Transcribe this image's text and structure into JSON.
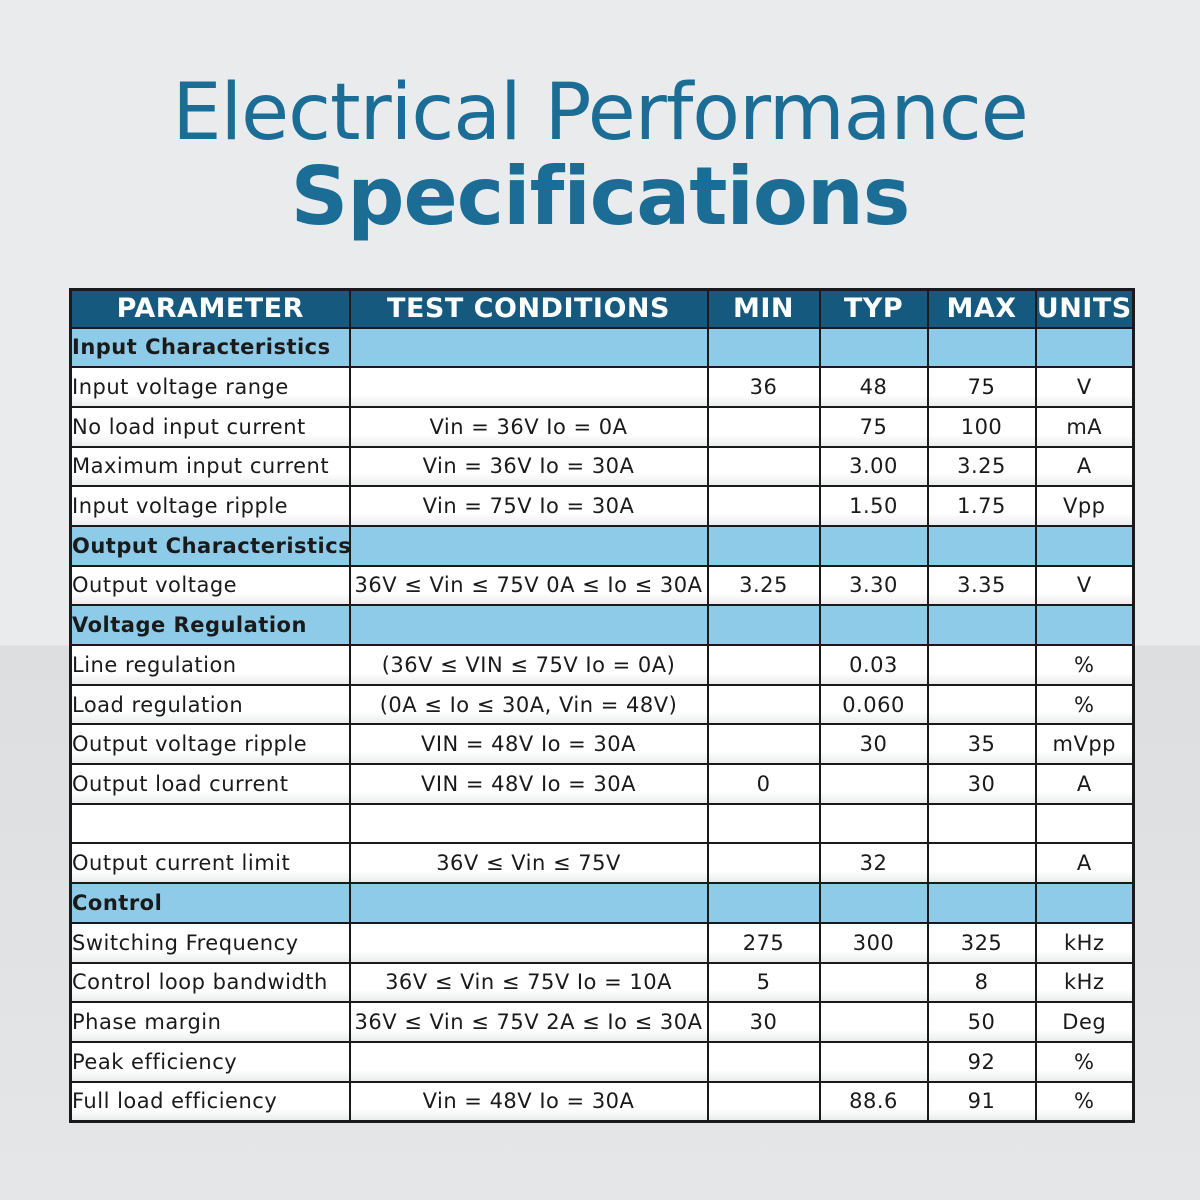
{
  "title": {
    "line1": "Electrical Performance",
    "line2": "Specifications"
  },
  "headers": [
    "PARAMETER",
    "TEST CONDITIONS",
    "MIN",
    "TYP",
    "MAX",
    "UNITS"
  ],
  "rows": [
    {
      "type": "section",
      "parameter": "Input Characteristics",
      "conditions": "",
      "min": "",
      "typ": "",
      "max": "",
      "units": ""
    },
    {
      "type": "data",
      "parameter": "Input voltage range",
      "conditions": "",
      "min": "36",
      "typ": "48",
      "max": "75",
      "units": "V"
    },
    {
      "type": "data",
      "parameter": "No load input current",
      "conditions": "Vin = 36V Io = 0A",
      "min": "",
      "typ": "75",
      "max": "100",
      "units": "mA"
    },
    {
      "type": "data",
      "parameter": "Maximum input current",
      "conditions": "Vin = 36V Io = 30A",
      "min": "",
      "typ": "3.00",
      "max": "3.25",
      "units": "A"
    },
    {
      "type": "data",
      "parameter": "Input voltage ripple",
      "conditions": "Vin = 75V Io = 30A",
      "min": "",
      "typ": "1.50",
      "max": "1.75",
      "units": "Vpp"
    },
    {
      "type": "section",
      "parameter": "Output Characteristics",
      "conditions": "",
      "min": "",
      "typ": "",
      "max": "",
      "units": ""
    },
    {
      "type": "data",
      "parameter": "Output voltage",
      "conditions": "36V ≤ Vin ≤ 75V 0A ≤ Io ≤ 30A",
      "min": "3.25",
      "typ": "3.30",
      "max": "3.35",
      "units": "V"
    },
    {
      "type": "section",
      "parameter": "Voltage Regulation",
      "conditions": "",
      "min": "",
      "typ": "",
      "max": "",
      "units": ""
    },
    {
      "type": "data",
      "parameter": "Line regulation",
      "conditions": "(36V ≤ VIN ≤ 75V Io = 0A)",
      "min": "",
      "typ": "0.03",
      "max": "",
      "units": "%"
    },
    {
      "type": "data",
      "parameter": "Load regulation",
      "conditions": "(0A ≤ Io ≤ 30A, Vin = 48V)",
      "min": "",
      "typ": "0.060",
      "max": "",
      "units": "%"
    },
    {
      "type": "data",
      "parameter": "Output voltage ripple",
      "conditions": "VIN = 48V Io = 30A",
      "min": "",
      "typ": "30",
      "max": "35",
      "units": "mVpp"
    },
    {
      "type": "data",
      "parameter": "Output load current",
      "conditions": "VIN = 48V Io = 30A",
      "min": "0",
      "typ": "",
      "max": "30",
      "units": "A"
    },
    {
      "type": "empty",
      "parameter": "",
      "conditions": "",
      "min": "",
      "typ": "",
      "max": "",
      "units": ""
    },
    {
      "type": "data",
      "parameter": "Output current limit",
      "conditions": "36V ≤ Vin ≤ 75V",
      "min": "",
      "typ": "32",
      "max": "",
      "units": "A"
    },
    {
      "type": "section",
      "parameter": "Control",
      "conditions": "",
      "min": "",
      "typ": "",
      "max": "",
      "units": ""
    },
    {
      "type": "data",
      "parameter": "Switching Frequency",
      "conditions": "",
      "min": "275",
      "typ": "300",
      "max": "325",
      "units": "kHz"
    },
    {
      "type": "data",
      "parameter": "Control loop bandwidth",
      "conditions": "36V ≤ Vin ≤ 75V Io = 10A",
      "min": "5",
      "typ": "",
      "max": "8",
      "units": "kHz"
    },
    {
      "type": "data",
      "parameter": "Phase margin",
      "conditions": "36V ≤ Vin ≤ 75V 2A ≤ Io ≤ 30A",
      "min": "30",
      "typ": "",
      "max": "50",
      "units": "Deg"
    },
    {
      "type": "data",
      "parameter": "Peak efficiency",
      "conditions": "",
      "min": "",
      "typ": "",
      "max": "92",
      "units": "%"
    },
    {
      "type": "data",
      "parameter": "Full load efficiency",
      "conditions": "Vin = 48V Io = 30A",
      "min": "",
      "typ": "88.6",
      "max": "91",
      "units": "%"
    }
  ]
}
